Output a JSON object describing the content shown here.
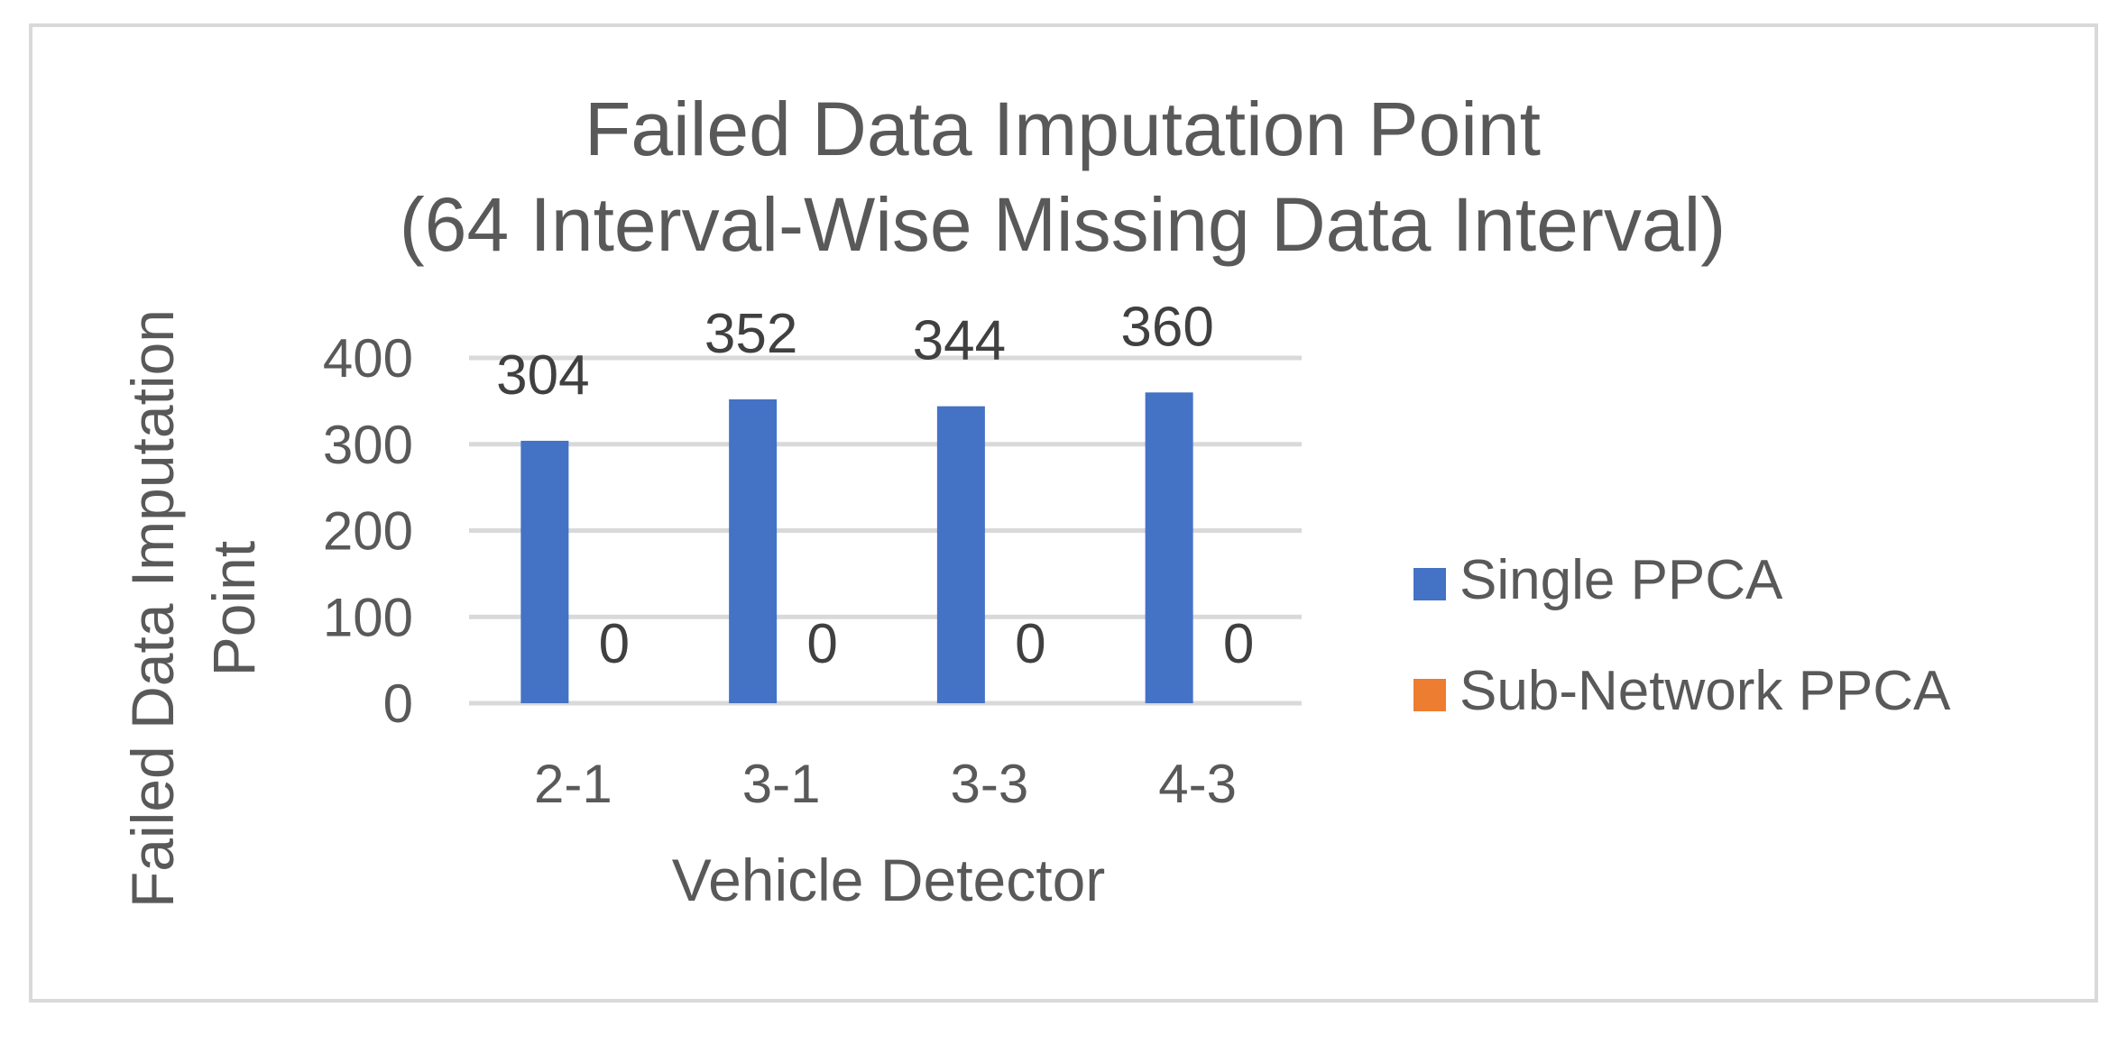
{
  "chart_data": {
    "type": "bar",
    "title": [
      "Failed Data Imputation Point",
      "(64 Interval-Wise Missing Data Interval)"
    ],
    "xlabel": "Vehicle Detector",
    "ylabel": [
      "Failed Data Imputation",
      "Point"
    ],
    "categories": [
      "2-1",
      "3-1",
      "3-3",
      "4-3"
    ],
    "series": [
      {
        "name": "Single PPCA",
        "color": "#4472c4",
        "values": [
          304,
          352,
          344,
          360
        ]
      },
      {
        "name": "Sub-Network PPCA",
        "color": "#ed7d31",
        "values": [
          0,
          0,
          0,
          0
        ]
      }
    ],
    "ylim": [
      0,
      400
    ],
    "yticks": [
      0,
      100,
      200,
      300,
      400
    ],
    "grid": true,
    "legend_position": "right"
  }
}
